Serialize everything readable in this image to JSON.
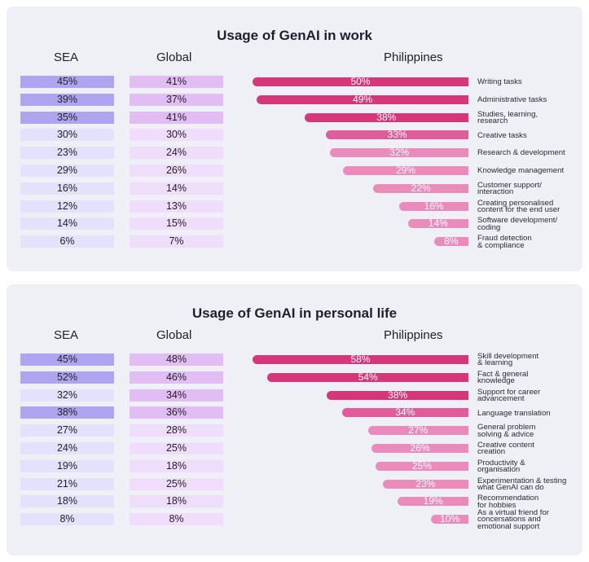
{
  "colors": {
    "panel_bg": "#eef0f6",
    "sea_dark": "#ada5f0",
    "sea_light": "#e3e1fb",
    "global_dark": "#e2bdf4",
    "global_light": "#f0dcfb",
    "ph_dark": "#d6367a",
    "ph_mid": "#e15c9a",
    "ph_light": "#ea8bbc"
  },
  "chart_data": [
    {
      "type": "table",
      "title": "Usage of GenAI in work",
      "columns": [
        "SEA",
        "Global",
        "Philippines"
      ],
      "categories": [
        "Writing tasks",
        "Administrative tasks",
        "Studies, learning, research",
        "Creative tasks",
        "Research & development",
        "Knowledge management",
        "Customer support/ interaction",
        "Creating personalised content for the end user",
        "Software development/ coding",
        "Fraud detection & compliance"
      ],
      "category_lines": [
        [
          "Writing tasks"
        ],
        [
          "Administrative tasks"
        ],
        [
          "Studies, learning,",
          "research"
        ],
        [
          "Creative tasks"
        ],
        [
          "Research & development"
        ],
        [
          "Knowledge management"
        ],
        [
          "Customer support/",
          "interaction"
        ],
        [
          "Creating personalised",
          "content for the end user"
        ],
        [
          "Software development/",
          "coding"
        ],
        [
          "Fraud detection",
          "& compliance"
        ]
      ],
      "series": [
        {
          "name": "SEA",
          "values": [
            45,
            39,
            35,
            30,
            23,
            29,
            16,
            12,
            14,
            6
          ],
          "labels": [
            "45%",
            "39%",
            "35%",
            "30%",
            "23%",
            "29%",
            "16%",
            "12%",
            "14%",
            "6%"
          ]
        },
        {
          "name": "Global",
          "values": [
            41,
            37,
            41,
            30,
            24,
            26,
            14,
            13,
            15,
            7
          ],
          "labels": [
            "41%",
            "37%",
            "41%",
            "30%",
            "24%",
            "26%",
            "14%",
            "13%",
            "15%",
            "7%"
          ]
        },
        {
          "name": "Philippines",
          "values": [
            50,
            49,
            38,
            33,
            32,
            29,
            22,
            16,
            14,
            8
          ],
          "labels": [
            "50%",
            "49%",
            "38%",
            "33%",
            "32%",
            "29%",
            "22%",
            "16%",
            "14%",
            "8%"
          ]
        }
      ],
      "xlim": [
        0,
        50
      ]
    },
    {
      "type": "table",
      "title": "Usage of GenAI in personal life",
      "columns": [
        "SEA",
        "Global",
        "Philippines"
      ],
      "categories": [
        "Skill development & learning",
        "Fact & general knowledge",
        "Support for career advancement",
        "Language translation",
        "General problem solving & advice",
        "Creative content creation",
        "Productivity & organisation",
        "Experimentation & testing what GenAI can do",
        "Recommendation for hobbies",
        "As a virtual friend for concersations and emotional support"
      ],
      "category_lines": [
        [
          "Skill development",
          "& learning"
        ],
        [
          "Fact & general",
          "knowledge"
        ],
        [
          "Support for career",
          "advancement"
        ],
        [
          "Language translation"
        ],
        [
          "General problem",
          "solving & advice"
        ],
        [
          "Creative content",
          "creation"
        ],
        [
          "Productivity &",
          "organisation"
        ],
        [
          "Experimentation & testing",
          "what GenAI can do"
        ],
        [
          "Recommendation",
          "for hobbies"
        ],
        [
          "As a virtual friend for",
          "concersations and",
          "emotional support"
        ]
      ],
      "series": [
        {
          "name": "SEA",
          "values": [
            45,
            52,
            32,
            38,
            27,
            24,
            19,
            21,
            18,
            8
          ],
          "labels": [
            "45%",
            "52%",
            "32%",
            "38%",
            "27%",
            "24%",
            "19%",
            "21%",
            "18%",
            "8%"
          ]
        },
        {
          "name": "Global",
          "values": [
            48,
            46,
            34,
            36,
            28,
            25,
            18,
            25,
            18,
            8
          ],
          "labels": [
            "48%",
            "46%",
            "34%",
            "36%",
            "28%",
            "25%",
            "18%",
            "25%",
            "18%",
            "8%"
          ]
        },
        {
          "name": "Philippines",
          "values": [
            58,
            54,
            38,
            34,
            27,
            26,
            25,
            23,
            19,
            10
          ],
          "labels": [
            "58%",
            "54%",
            "38%",
            "34%",
            "27%",
            "26%",
            "25%",
            "23%",
            "19%",
            "10%"
          ]
        }
      ],
      "xlim": [
        0,
        58
      ]
    }
  ]
}
